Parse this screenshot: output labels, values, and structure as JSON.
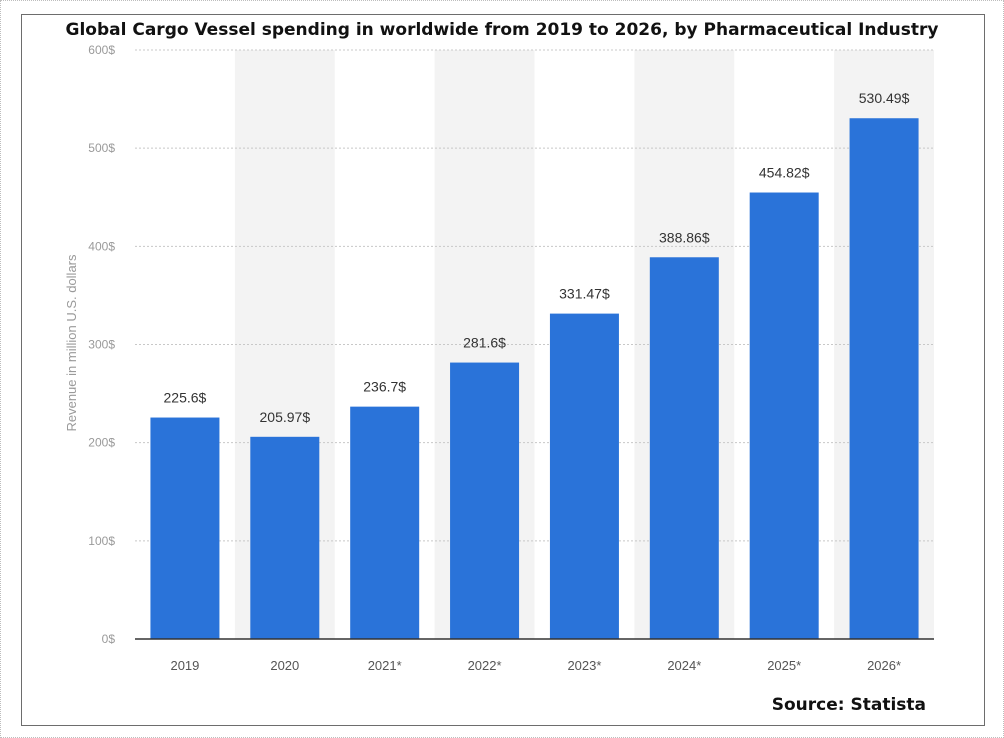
{
  "chart_data": {
    "type": "bar",
    "title": "Global Cargo Vessel spending in worldwide from 2019 to 2026, by Pharmaceutical Industry",
    "xlabel": "",
    "ylabel": "Revenue in million U.S. dollars",
    "categories": [
      "2019",
      "2020",
      "2021*",
      "2022*",
      "2023*",
      "2024*",
      "2025*",
      "2026*"
    ],
    "values": [
      225.6,
      205.97,
      236.7,
      281.6,
      331.47,
      388.86,
      454.82,
      530.49
    ],
    "value_labels": [
      "225.6$",
      "205.97$",
      "236.7$",
      "281.6$",
      "331.47$",
      "388.86$",
      "454.82$",
      "530.49$"
    ],
    "ylim": [
      0,
      600
    ],
    "yticks": [
      0,
      100,
      200,
      300,
      400,
      500,
      600
    ],
    "ytick_labels": [
      "0$",
      "100$",
      "200$",
      "300$",
      "400$",
      "500$",
      "600$"
    ],
    "grid": true,
    "bar_color": "#2a73d9",
    "alt_band_color": "#f3f3f3"
  },
  "source": "Source: Statista"
}
